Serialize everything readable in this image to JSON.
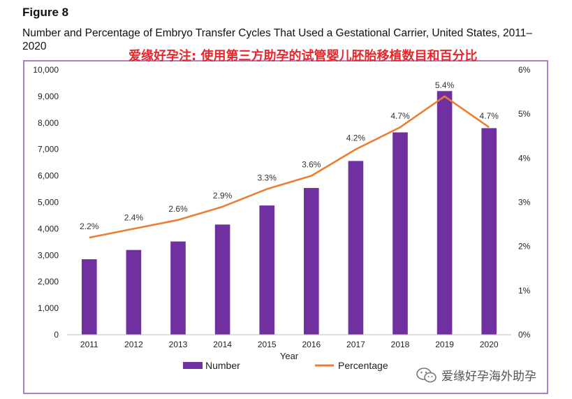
{
  "figure": {
    "label": "Figure 8",
    "title": "Number and Percentage of Embryo Transfer Cycles That Used a Gestational Carrier, United States, 2011–2020",
    "annotation_cn": "爱缘好孕注: 使用第三方助孕的试管婴儿胚胎移植数目和百分比",
    "watermark_text": "爱缘好孕海外助孕",
    "watermark_icon": "wechat-icon"
  },
  "chart_data": {
    "type": "bar",
    "categories": [
      "2011",
      "2012",
      "2013",
      "2014",
      "2015",
      "2016",
      "2017",
      "2018",
      "2019",
      "2020"
    ],
    "series": [
      {
        "name": "Number",
        "type": "bar",
        "axis": "left",
        "color": "#7030a0",
        "values": [
          2850,
          3200,
          3520,
          4160,
          4880,
          5540,
          6560,
          7640,
          9200,
          7800
        ]
      },
      {
        "name": "Percentage",
        "type": "line",
        "axis": "right",
        "color": "#ed7d31",
        "values": [
          2.2,
          2.4,
          2.6,
          2.9,
          3.3,
          3.6,
          4.2,
          4.7,
          5.4,
          4.7
        ],
        "data_labels": [
          "2.2%",
          "2.4%",
          "2.6%",
          "2.9%",
          "3.3%",
          "3.6%",
          "4.2%",
          "4.7%",
          "5.4%",
          "4.7%"
        ]
      }
    ],
    "xlabel": "Year",
    "ylabel": "",
    "ylim": [
      0,
      10000
    ],
    "y_ticks": [
      "0",
      "1,000",
      "2,000",
      "3,000",
      "4,000",
      "5,000",
      "6,000",
      "7,000",
      "8,000",
      "9,000",
      "10,000"
    ],
    "y2lim": [
      0,
      6
    ],
    "y2_ticks": [
      "0%",
      "1%",
      "2%",
      "3%",
      "4%",
      "5%",
      "6%"
    ],
    "grid": false,
    "legend_position": "bottom"
  }
}
